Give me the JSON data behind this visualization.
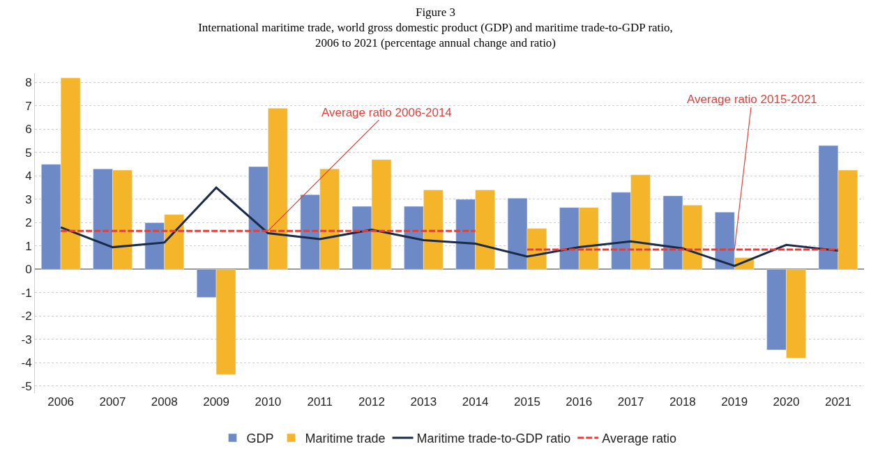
{
  "chart_data": {
    "type": "bar",
    "title": "Figure 3",
    "subtitle": "International maritime trade, world gross domestic product (GDP) and maritime trade-to-GDP ratio,\n2006 to 2021 (percentage annual change and ratio)",
    "categories": [
      "2006",
      "2007",
      "2008",
      "2009",
      "2010",
      "2011",
      "2012",
      "2013",
      "2014",
      "2015",
      "2016",
      "2017",
      "2018",
      "2019",
      "2020",
      "2021"
    ],
    "series": [
      {
        "name": "GDP",
        "color": "#6d8ac6",
        "values": [
          4.5,
          4.3,
          2.0,
          -1.2,
          4.4,
          3.2,
          2.7,
          2.7,
          3.0,
          3.05,
          2.65,
          3.3,
          3.15,
          2.45,
          -3.45,
          5.3
        ]
      },
      {
        "name": "Maritime trade",
        "color": "#f5b52a",
        "values": [
          8.2,
          4.25,
          2.35,
          -4.5,
          6.9,
          4.3,
          4.7,
          3.4,
          3.4,
          1.75,
          2.65,
          4.05,
          2.75,
          0.5,
          -3.8,
          4.25
        ]
      },
      {
        "name": "Maritime trade-to-GDP ratio",
        "type": "line",
        "color": "#1a2b4a",
        "line_style": "solid",
        "values": [
          1.8,
          0.95,
          1.15,
          3.5,
          1.55,
          1.3,
          1.7,
          1.25,
          1.1,
          0.55,
          0.95,
          1.2,
          0.9,
          0.15,
          1.05,
          0.8
        ]
      },
      {
        "name": "Average ratio",
        "type": "line",
        "color": "#e2403a",
        "line_style": "dashed",
        "values": [
          1.65,
          1.65,
          1.65,
          1.65,
          1.65,
          1.65,
          1.65,
          1.65,
          1.65,
          null,
          null,
          null,
          null,
          null,
          null,
          null
        ]
      },
      {
        "type": "line",
        "color": "#e2403a",
        "line_style": "dashed",
        "values": [
          null,
          null,
          null,
          null,
          null,
          null,
          null,
          null,
          null,
          0.85,
          0.85,
          0.85,
          0.85,
          0.85,
          0.85,
          0.85
        ]
      }
    ],
    "annotations": [
      {
        "text": "Average ratio 2006-2014",
        "x": "2010",
        "y": 1.65
      },
      {
        "text": "Average ratio 2015-2021",
        "x": "2019",
        "y": 0.85
      }
    ],
    "ylim": [
      -5.3,
      8.4
    ],
    "yticks": [
      -5,
      -4,
      -3,
      -2,
      -1,
      0,
      1,
      2,
      3,
      4,
      5,
      6,
      7,
      8
    ],
    "grid": "y",
    "legend": "bottom"
  }
}
